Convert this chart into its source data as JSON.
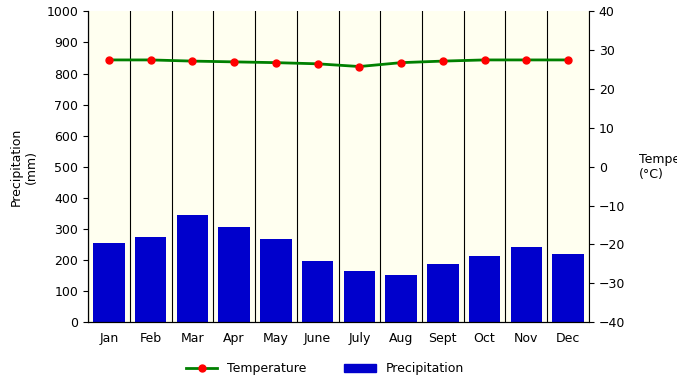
{
  "months": [
    "Jan",
    "Feb",
    "Mar",
    "Apr",
    "May",
    "June",
    "July",
    "Aug",
    "Sept",
    "Oct",
    "Nov",
    "Dec"
  ],
  "precipitation": [
    255,
    275,
    345,
    305,
    268,
    198,
    163,
    153,
    188,
    213,
    243,
    218
  ],
  "temperature": [
    27.5,
    27.5,
    27.2,
    27.0,
    26.8,
    26.5,
    25.8,
    26.8,
    27.2,
    27.5,
    27.5,
    27.5
  ],
  "precip_ylim": [
    0,
    1000
  ],
  "temp_ylim": [
    -40,
    40
  ],
  "precip_yticks": [
    0,
    100,
    200,
    300,
    400,
    500,
    600,
    700,
    800,
    900,
    1000
  ],
  "temp_yticks": [
    -40,
    -30,
    -20,
    -10,
    0,
    10,
    20,
    30,
    40
  ],
  "bar_color": "#0000cc",
  "line_color": "#008000",
  "marker_color": "#ff0000",
  "background_color": "#fffff0",
  "ylabel_left": "Precipitation\n(mm)",
  "ylabel_right": "Temperature\n(°C)",
  "legend_temp": "Temperature",
  "legend_precip": "Precipitation",
  "fig_width": 6.77,
  "fig_height": 3.79
}
